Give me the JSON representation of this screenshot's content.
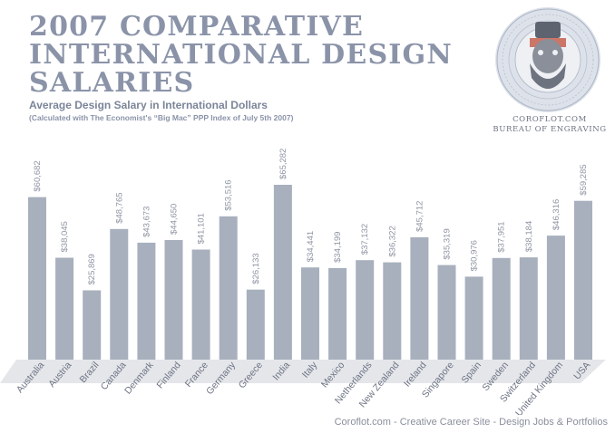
{
  "header": {
    "title": "2007 Comparative International Design Salaries",
    "subtitle": "Average Design Salary in International Dollars",
    "note": "(Calculated with The Economist's “Big Mac” PPP Index of July 5th 2007)"
  },
  "seal": {
    "line1": "COROFLOT.COM",
    "line2": "BUREAU OF ENGRAVING"
  },
  "footer": {
    "text": "Coroflot.com - Creative Career Site - Design Jobs & Portfolios"
  },
  "colors": {
    "bar": "#a8b0bd",
    "label": "#8f95a3",
    "title": "#8a93a8",
    "floor": "#e4e6ea"
  },
  "chart_data": {
    "type": "bar",
    "title": "Average Design Salary in International Dollars",
    "categories": [
      "Australia",
      "Austria",
      "Brazil",
      "Canada",
      "Denmark",
      "Finland",
      "France",
      "Germany",
      "Greece",
      "India",
      "Italy",
      "Mexico",
      "Netherlands",
      "New Zealand",
      "Ireland",
      "Singapore",
      "Spain",
      "Sweden",
      "Switzerland",
      "United Kingdom",
      "USA"
    ],
    "values": [
      60682,
      38045,
      25869,
      48765,
      43673,
      44650,
      41101,
      53516,
      26133,
      65282,
      34441,
      34199,
      37132,
      36322,
      45712,
      35319,
      30976,
      37951,
      38184,
      46316,
      59285
    ],
    "value_labels": [
      "$60,682",
      "$38,045",
      "$25,869",
      "$48,765",
      "$43,673",
      "$44,650",
      "$41,101",
      "$53,516",
      "$26,133",
      "$65,282",
      "$34,441",
      "$34,199",
      "$37,132",
      "$36,322",
      "$45,712",
      "$35,319",
      "$30,976",
      "$37,951",
      "$38,184",
      "$46,316",
      "$59,285"
    ],
    "xlabel": "",
    "ylabel": "",
    "ylim": [
      0,
      80000
    ],
    "grid": false
  }
}
